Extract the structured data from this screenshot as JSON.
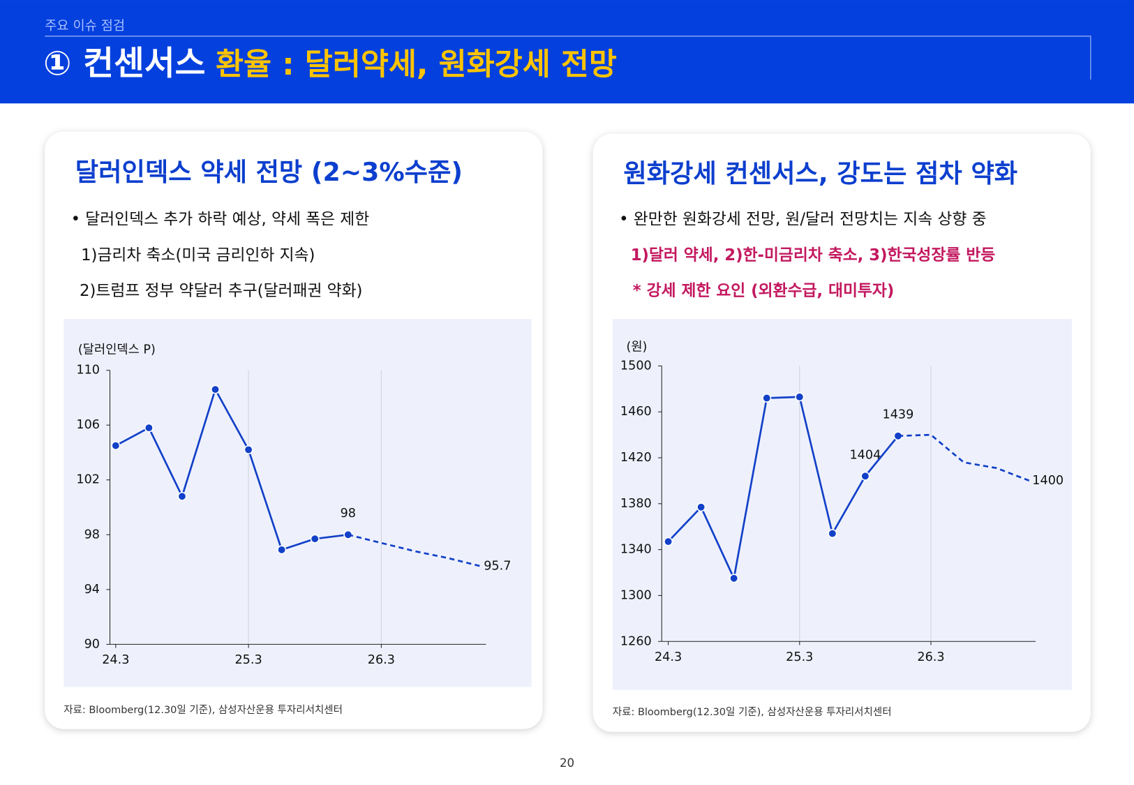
{
  "header": {
    "section": "주요 이슈 점검",
    "title_lead": "① 컨센서스",
    "title_main": "환율 : 달러약세, 원화강세 전망"
  },
  "panels": [
    {
      "heading": "달러인덱스 약세 전망 (2~3%수준)",
      "lines": [
        "• 달러인덱스 추가 하락 예상, 약세 폭은 제한",
        "1)금리차 축소(미국 금리인하 지속)",
        "2)트럼프 정부 약달러 추구(달러패권 약화)"
      ],
      "source": "자료: Bloomberg(12.30일 기준), 삼성자산운용 투자리서치센터"
    },
    {
      "heading": "원화강세 컨센서스, 강도는 점차 약화",
      "lines": [
        "• 완만한 원화강세 전망, 원/달러 전망치는 지속 상향 중",
        "1)달러 약세, 2)한-미금리차 축소, 3)한국성장률 반등",
        "* 강세 제한 요인 (외환수급, 대미투자)"
      ],
      "source": "자료: Bloomberg(12.30일 기준), 삼성자산운용 투자리서치센터"
    }
  ],
  "chart_data": [
    {
      "type": "line",
      "y_label": "(달러인덱스 P)",
      "categories": [
        "24.3",
        null,
        null,
        null,
        "25.3",
        null,
        null,
        null,
        "26.3",
        null,
        null,
        null
      ],
      "ylim": [
        90,
        110
      ],
      "yticks": [
        90,
        94,
        98,
        102,
        106,
        110
      ],
      "xgrid": true,
      "series": [
        {
          "color": "#1240c8",
          "dash": false,
          "markers": true,
          "values": [
            104.5,
            105.8,
            100.8,
            108.6,
            104.2,
            96.9,
            97.7,
            98.0,
            null,
            null,
            null,
            null
          ],
          "value_labels": [
            null,
            null,
            null,
            null,
            null,
            null,
            null,
            "98",
            null,
            null,
            null,
            null
          ]
        },
        {
          "color": "#1240c8",
          "dash": true,
          "markers": false,
          "values": [
            null,
            null,
            null,
            null,
            null,
            null,
            null,
            98.0,
            97.4,
            96.8,
            96.3,
            95.7
          ],
          "value_labels": [
            null,
            null,
            null,
            null,
            null,
            null,
            null,
            null,
            null,
            null,
            null,
            "95.7"
          ]
        }
      ]
    },
    {
      "type": "line",
      "y_label": "(원)",
      "categories": [
        "24.3",
        null,
        null,
        null,
        "25.3",
        null,
        null,
        null,
        "26.3",
        null,
        null,
        null
      ],
      "ylim": [
        1260,
        1500
      ],
      "yticks": [
        1260,
        1300,
        1340,
        1380,
        1420,
        1460,
        1500
      ],
      "xgrid": true,
      "series": [
        {
          "color": "#1240c8",
          "dash": false,
          "markers": true,
          "values": [
            1347,
            1377,
            1315,
            1472,
            1473,
            1354,
            1404,
            1439,
            null,
            null,
            null,
            null
          ],
          "value_labels": [
            null,
            null,
            null,
            null,
            null,
            null,
            "1404",
            "1439",
            null,
            null,
            null,
            null
          ]
        },
        {
          "color": "#1240c8",
          "dash": true,
          "markers": false,
          "values": [
            null,
            null,
            null,
            null,
            null,
            null,
            null,
            1439,
            1440,
            1416,
            1411,
            1400
          ],
          "value_labels": [
            null,
            null,
            null,
            null,
            null,
            null,
            null,
            null,
            null,
            null,
            null,
            "1400"
          ]
        }
      ]
    }
  ],
  "page_number": "20"
}
